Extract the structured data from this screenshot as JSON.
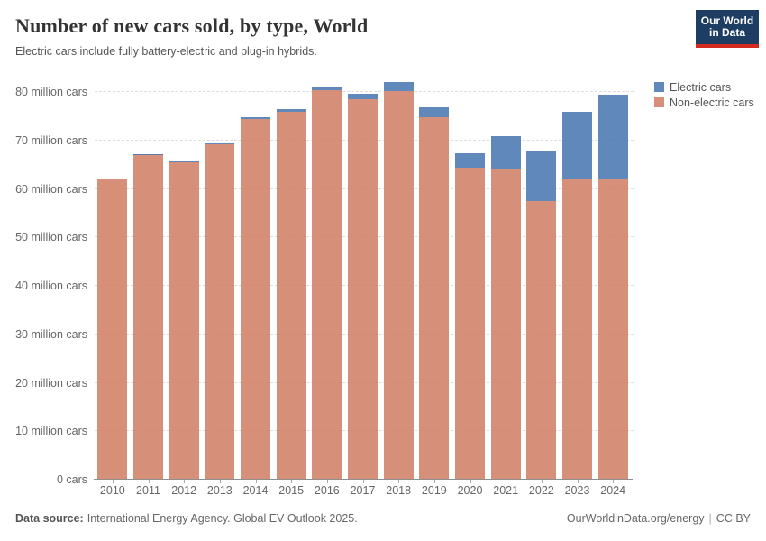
{
  "header": {
    "title": "Number of new cars sold, by type, World",
    "subtitle": "Electric cars include fully battery-electric and plug-in hybrids.",
    "logo": {
      "line1": "Our World",
      "line2": "in Data",
      "bg_color": "#1d3d63",
      "accent_color": "#d42b21"
    }
  },
  "chart_data": {
    "type": "bar",
    "stacked": true,
    "title": "Number of new cars sold, by type, World",
    "xlabel": "",
    "ylabel": "cars",
    "unit": "million cars",
    "ylim": [
      0,
      80
    ],
    "grid": "horizontal-dashed",
    "legend_position": "top-right",
    "categories": [
      "2010",
      "2011",
      "2012",
      "2013",
      "2014",
      "2015",
      "2016",
      "2017",
      "2018",
      "2019",
      "2020",
      "2021",
      "2022",
      "2023",
      "2024"
    ],
    "series": [
      {
        "name": "Non-electric cars",
        "color": "#d08168",
        "values": [
          62.0,
          67.1,
          65.4,
          69.2,
          74.4,
          75.9,
          80.3,
          78.5,
          80.1,
          74.8,
          64.4,
          64.2,
          57.5,
          62.2,
          61.9
        ]
      },
      {
        "name": "Electric cars",
        "color": "#4a78b0",
        "values": [
          0.01,
          0.05,
          0.2,
          0.2,
          0.4,
          0.6,
          0.9,
          1.2,
          2.0,
          2.1,
          3.0,
          6.7,
          10.3,
          13.8,
          17.5
        ]
      }
    ],
    "yticks": [
      {
        "value": 0,
        "label": "0 cars"
      },
      {
        "value": 10,
        "label": "10 million cars"
      },
      {
        "value": 20,
        "label": "20 million cars"
      },
      {
        "value": 30,
        "label": "30 million cars"
      },
      {
        "value": 40,
        "label": "40 million cars"
      },
      {
        "value": 50,
        "label": "50 million cars"
      },
      {
        "value": 60,
        "label": "60 million cars"
      },
      {
        "value": 70,
        "label": "70 million cars"
      },
      {
        "value": 80,
        "label": "80 million cars"
      }
    ]
  },
  "footer": {
    "source_label": "Data source:",
    "source_text": "International Energy Agency. Global EV Outlook 2025.",
    "link": "OurWorldinData.org/energy",
    "separator": "|",
    "license": "CC BY"
  }
}
